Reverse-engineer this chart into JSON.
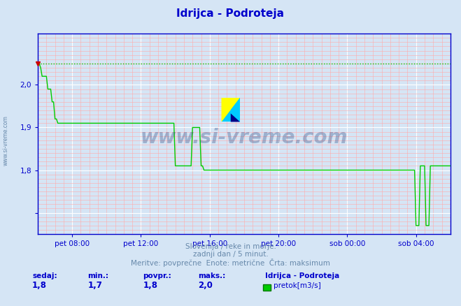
{
  "title": "Idrijca - Podroteja",
  "bg_color": "#d5e5f5",
  "plot_bg_color": "#d5e5f5",
  "line_color": "#00cc00",
  "axis_color": "#0000cc",
  "grid_major_color": "#ffffff",
  "grid_minor_color": "#ffaaaa",
  "xlabel_ticks": [
    "pet 08:00",
    "pet 12:00",
    "pet 16:00",
    "pet 20:00",
    "sob 00:00",
    "sob 04:00"
  ],
  "ytick_labels": [
    "",
    "1,8",
    "1,9",
    "2,0"
  ],
  "watermark": "www.si-vreme.com",
  "left_label": "www.si-vreme.com",
  "footer_line1": "Slovenija / reke in morje.",
  "footer_line2": "zadnji dan / 5 minut.",
  "footer_line3": "Meritve: povprečne  Enote: metrične  Črta: maksimum",
  "stats_labels": [
    "sedaj:",
    "min.:",
    "povpr.:",
    "maks.:"
  ],
  "stats_values": [
    "1,8",
    "1,7",
    "1,8",
    "2,0"
  ],
  "legend_label": "Idrijca - Podroteja",
  "legend_series": "pretok[m3/s]",
  "max_value": 2.05,
  "ylim_min": 1.65,
  "ylim_max": 2.12,
  "title_color": "#0000cc",
  "footer_color": "#6688aa",
  "stats_label_color": "#0000cc",
  "stats_value_color": "#0000cc",
  "major_yticks": [
    1.7,
    1.8,
    1.9,
    2.0
  ],
  "x_major_ticks": [
    24,
    72,
    120,
    168,
    216,
    264
  ],
  "n_points": 289
}
